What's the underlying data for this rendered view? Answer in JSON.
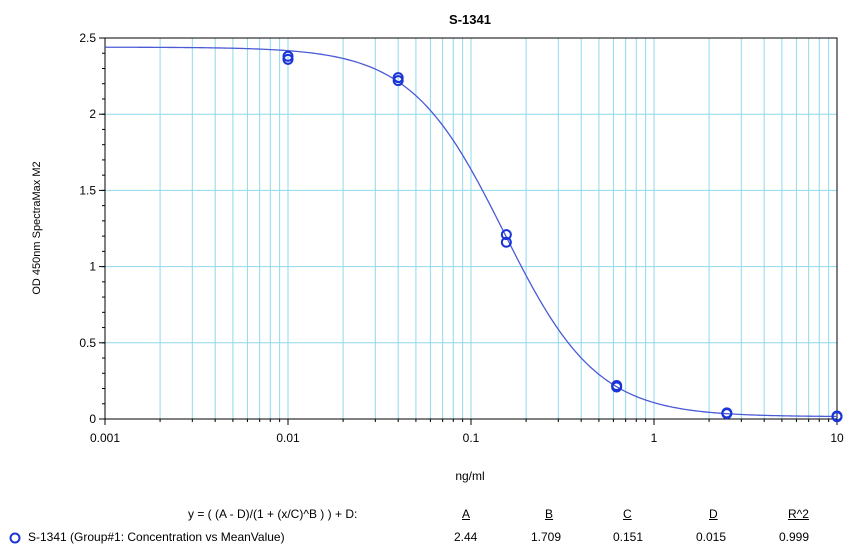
{
  "chart_data": {
    "type": "scatter",
    "title": "S-1341",
    "xlabel": "ng/ml",
    "ylabel": "OD 450nm SpectraMax M2",
    "x_scale": "log",
    "xlim": [
      0.001,
      10
    ],
    "ylim": [
      0,
      2.5
    ],
    "grid": true,
    "x_tick_labels": [
      "0.001",
      "0.01",
      "0.1",
      "1",
      "10"
    ],
    "y_tick_labels": [
      "0",
      "0.5",
      "1",
      "1.5",
      "2",
      "2.5"
    ],
    "points": [
      {
        "x": 0.01,
        "y": 2.38
      },
      {
        "x": 0.01,
        "y": 2.36
      },
      {
        "x": 0.04,
        "y": 2.24
      },
      {
        "x": 0.04,
        "y": 2.22
      },
      {
        "x": 0.156,
        "y": 1.21
      },
      {
        "x": 0.156,
        "y": 1.16
      },
      {
        "x": 0.625,
        "y": 0.22
      },
      {
        "x": 0.625,
        "y": 0.21
      },
      {
        "x": 2.5,
        "y": 0.04
      },
      {
        "x": 2.5,
        "y": 0.035
      },
      {
        "x": 10,
        "y": 0.02
      },
      {
        "x": 10,
        "y": 0.015
      }
    ],
    "fit": {
      "A": 2.44,
      "B": 1.709,
      "C": 0.151,
      "D": 0.015
    },
    "colors": {
      "curve": "#4b5bd6",
      "points": "#1b34d6",
      "grid": "#8fd8ee"
    }
  },
  "legend": {
    "equation": "y = ( (A - D)/(1 + (x/C)^B ) ) + D:",
    "series_label": "S-1341 (Group#1: Concentration vs MeanValue)",
    "headers": [
      "A",
      "B",
      "C",
      "D",
      "R^2"
    ],
    "values": [
      "2.44",
      "1.709",
      "0.151",
      "0.015",
      "0.999"
    ]
  }
}
